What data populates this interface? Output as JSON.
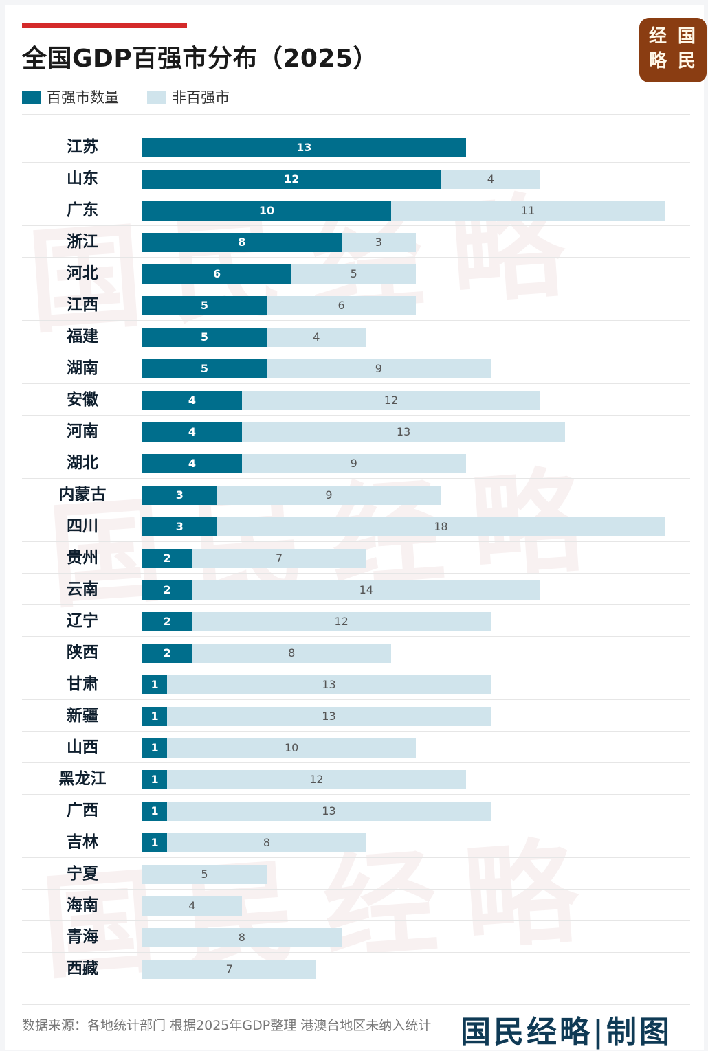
{
  "header": {
    "title": "全国GDP百强市分布（2025）",
    "logo_chars": [
      "经",
      "国",
      "略",
      "民"
    ],
    "legend": [
      {
        "label": "百强市数量",
        "color": "#006e8c"
      },
      {
        "label": "非百强市",
        "color": "#d0e4ec"
      }
    ]
  },
  "watermark": "国民经略",
  "footer": {
    "source": "数据来源：各地统计部门 根据2025年GDP整理 港澳台地区未纳入统计",
    "brand": "国民经略|制图"
  },
  "chart_data": {
    "type": "bar",
    "orientation": "horizontal",
    "stacked": true,
    "categories": [
      "江苏",
      "山东",
      "广东",
      "浙江",
      "河北",
      "江西",
      "福建",
      "湖南",
      "安徽",
      "河南",
      "湖北",
      "内蒙古",
      "四川",
      "贵州",
      "云南",
      "辽宁",
      "陕西",
      "甘肃",
      "新疆",
      "山西",
      "黑龙江",
      "广西",
      "吉林",
      "宁夏",
      "海南",
      "青海",
      "西藏"
    ],
    "series": [
      {
        "name": "百强市数量",
        "color": "#006e8c",
        "values": [
          13,
          12,
          10,
          8,
          6,
          5,
          5,
          5,
          4,
          4,
          4,
          3,
          3,
          2,
          2,
          2,
          2,
          1,
          1,
          1,
          1,
          1,
          1,
          0,
          0,
          0,
          0
        ]
      },
      {
        "name": "非百强市",
        "color": "#d0e4ec",
        "values": [
          0,
          4,
          11,
          3,
          5,
          6,
          4,
          9,
          12,
          13,
          9,
          9,
          18,
          7,
          14,
          12,
          8,
          13,
          13,
          10,
          12,
          13,
          8,
          5,
          4,
          8,
          7
        ]
      }
    ],
    "xlim": [
      0,
      21
    ],
    "grid": false,
    "legend": "top-left"
  }
}
